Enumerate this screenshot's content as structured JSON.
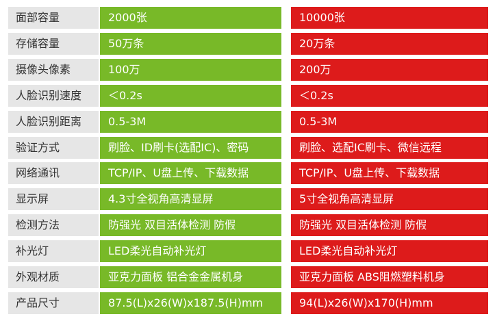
{
  "colors": {
    "label_bg": "#e6e6e6",
    "model_a": "#78b928",
    "model_b": "#dd1b1b"
  },
  "rows": [
    {
      "label": "面部容量",
      "a": "2000张",
      "b": "10000张"
    },
    {
      "label": "存储容量",
      "a": "50万条",
      "b": "20万条"
    },
    {
      "label": "摄像头像素",
      "a": "100万",
      "b": "200万"
    },
    {
      "label": "人脸识别速度",
      "a": "＜0.2s",
      "b": "＜0.2s"
    },
    {
      "label": "人脸识别距离",
      "a": "0.5-3M",
      "b": "0.5-3M"
    },
    {
      "label": "验证方式",
      "a": "刷脸、ID刷卡(选配IC)、密码",
      "b": "刷脸、选配IC刷卡、微信远程"
    },
    {
      "label": "网络通讯",
      "a": "TCP/IP、U盘上传、下载数据",
      "b": "TCP/IP、U盘上传、下载数据"
    },
    {
      "label": "显示屏",
      "a": "4.3寸全视角高清显屏",
      "b": "5寸全视角高清显屏"
    },
    {
      "label": "检测方法",
      "a": "防强光 双目活体检测 防假",
      "b": "防强光 双目活体检测 防假"
    },
    {
      "label": "补光灯",
      "a": "LED柔光自动补光灯",
      "b": "LED柔光自动补光灯"
    },
    {
      "label": "外观材质",
      "a": "亚克力面板 铝合金金属机身",
      "b": "亚克力面板 ABS阻燃塑料机身"
    },
    {
      "label": "产品尺寸",
      "a": "87.5(L)x26(W)x187.5(H)mm",
      "b": "94(L)x26(W)x170(H)mm"
    }
  ]
}
